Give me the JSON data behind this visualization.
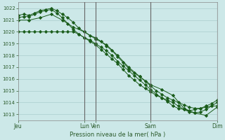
{
  "bg_color": "#cce8e8",
  "grid_color": "#aacece",
  "line_color": "#1a5c1a",
  "marker_color": "#1a5c1a",
  "xlabel_text": "Pression niveau de la mer( hPa )",
  "ylim": [
    1012.5,
    1022.5
  ],
  "yticks": [
    1013,
    1014,
    1015,
    1016,
    1017,
    1018,
    1019,
    1020,
    1021,
    1022
  ],
  "xtick_labels": [
    "Jeu",
    "Lun",
    "Ven",
    "Sam",
    "Dim"
  ],
  "xtick_positions": [
    0,
    6,
    7,
    12,
    18
  ],
  "vlines": [
    6,
    7,
    12,
    18
  ],
  "vline_color": "#666666",
  "series1": {
    "x": [
      0,
      0.5,
      1,
      1.5,
      2,
      2.5,
      3,
      3.5,
      4,
      4.5,
      5,
      5.5,
      6,
      6.5,
      7,
      7.5,
      8,
      8.5,
      9,
      9.5,
      10,
      10.5,
      11,
      11.5,
      12,
      12.5,
      13,
      13.5,
      14,
      14.5,
      15,
      15.5,
      16,
      16.5,
      17,
      17.5,
      18
    ],
    "y": [
      1020.0,
      1020.0,
      1020.0,
      1020.0,
      1020.0,
      1020.0,
      1020.0,
      1020.0,
      1020.0,
      1020.0,
      1020.0,
      1019.8,
      1019.5,
      1019.3,
      1019.0,
      1018.7,
      1018.4,
      1018.0,
      1017.5,
      1017.1,
      1016.7,
      1016.3,
      1015.9,
      1015.5,
      1015.1,
      1014.7,
      1014.4,
      1014.1,
      1013.7,
      1013.5,
      1013.4,
      1013.3,
      1013.4,
      1013.5,
      1013.6,
      1013.7,
      1013.7
    ]
  },
  "series2": {
    "x": [
      0,
      0.5,
      1,
      1.5,
      2,
      2.5,
      3,
      3.5,
      4,
      4.5,
      5,
      5.5,
      6,
      6.5,
      7,
      7.5,
      8,
      8.5,
      9,
      9.5,
      10,
      10.5,
      11,
      11.5,
      12,
      12.5,
      13,
      13.5,
      14,
      14.5,
      15,
      15.5,
      16,
      16.5,
      17,
      17.5,
      18
    ],
    "y": [
      1021.4,
      1021.5,
      1021.4,
      1021.6,
      1021.8,
      1021.9,
      1022.0,
      1021.8,
      1021.5,
      1021.2,
      1020.8,
      1020.3,
      1020.0,
      1019.7,
      1019.5,
      1019.2,
      1018.8,
      1018.4,
      1017.9,
      1017.4,
      1016.9,
      1016.5,
      1016.2,
      1015.8,
      1015.4,
      1015.0,
      1014.7,
      1014.4,
      1014.2,
      1014.0,
      1013.8,
      1013.6,
      1013.5,
      1013.5,
      1013.7,
      1013.9,
      1014.2
    ]
  },
  "series3": {
    "x": [
      0,
      0.5,
      1,
      1.5,
      2,
      2.5,
      3,
      3.5,
      4,
      4.5,
      5,
      5.5,
      6,
      6.5,
      7,
      7.5,
      8,
      8.5,
      9,
      9.5,
      10,
      10.5,
      11,
      11.5,
      12,
      12.5,
      13,
      13.5,
      14,
      14.5,
      15,
      15.5,
      16,
      16.5,
      17,
      17.5,
      18
    ],
    "y": [
      1021.2,
      1021.3,
      1021.3,
      1021.5,
      1021.7,
      1021.8,
      1021.9,
      1021.6,
      1021.2,
      1020.7,
      1020.2,
      1019.8,
      1019.5,
      1019.2,
      1018.9,
      1018.5,
      1018.1,
      1017.7,
      1017.3,
      1016.8,
      1016.3,
      1015.9,
      1015.5,
      1015.2,
      1014.9,
      1014.6,
      1014.4,
      1014.2,
      1014.0,
      1013.7,
      1013.4,
      1013.2,
      1013.1,
      1013.2,
      1013.4,
      1013.7,
      1014.0
    ]
  },
  "series4": {
    "x": [
      0,
      1,
      2,
      3,
      4,
      5,
      6,
      7,
      8,
      9,
      10,
      11,
      12,
      13,
      14,
      15,
      16,
      17,
      18
    ],
    "y": [
      1021.0,
      1021.0,
      1021.2,
      1021.5,
      1021.0,
      1020.4,
      1020.0,
      1019.4,
      1018.9,
      1018.0,
      1017.0,
      1016.2,
      1015.5,
      1015.1,
      1014.6,
      1013.5,
      1013.1,
      1012.9,
      1013.6
    ]
  }
}
